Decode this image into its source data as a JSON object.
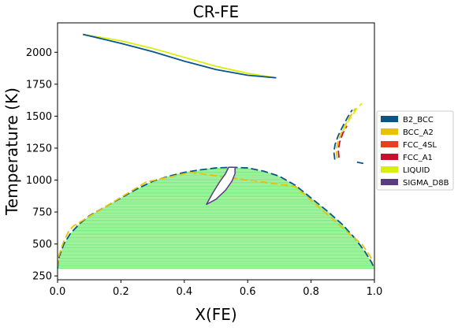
{
  "chart_data": {
    "type": "line",
    "title": "CR-FE",
    "xlabel": "X(FE)",
    "ylabel": "Temperature (K)",
    "xlim": [
      0.0,
      1.0
    ],
    "ylim": [
      220,
      2230
    ],
    "xticks": [
      "0.0",
      "0.2",
      "0.4",
      "0.6",
      "0.8",
      "1.0"
    ],
    "yticks": [
      "250",
      "500",
      "750",
      "1000",
      "1250",
      "1500",
      "1750",
      "2000"
    ],
    "grid": false,
    "legend_position": "right",
    "legend": [
      {
        "name": "B2_BCC",
        "color": "#08558a"
      },
      {
        "name": "BCC_A2",
        "color": "#ecc000"
      },
      {
        "name": "FCC_4SL",
        "color": "#e8401c"
      },
      {
        "name": "FCC_A1",
        "color": "#c8102e"
      },
      {
        "name": "LIQUID",
        "color": "#d8ee10"
      },
      {
        "name": "SIGMA_D8B",
        "color": "#5a3c82"
      }
    ],
    "tie_line_color": "#80ee80",
    "tie_lines": {
      "t_min": 310,
      "t_max": 1095,
      "step": 8
    },
    "series": [
      {
        "name": "LIQUID",
        "style": "solid",
        "points": [
          [
            0.08,
            2140
          ],
          [
            0.2,
            2090
          ],
          [
            0.3,
            2030
          ],
          [
            0.4,
            1960
          ],
          [
            0.5,
            1890
          ],
          [
            0.6,
            1835
          ],
          [
            0.69,
            1800
          ]
        ]
      },
      {
        "name": "B2_BCC",
        "style": "solid",
        "points": [
          [
            0.08,
            2140
          ],
          [
            0.2,
            2070
          ],
          [
            0.3,
            2005
          ],
          [
            0.4,
            1930
          ],
          [
            0.5,
            1865
          ],
          [
            0.6,
            1820
          ],
          [
            0.69,
            1800
          ]
        ]
      },
      {
        "name": "B2_BCC",
        "style": "dashed",
        "points": [
          [
            0.0,
            310
          ],
          [
            0.005,
            400
          ],
          [
            0.02,
            500
          ],
          [
            0.04,
            580
          ],
          [
            0.07,
            660
          ],
          [
            0.1,
            720
          ],
          [
            0.15,
            790
          ],
          [
            0.2,
            860
          ],
          [
            0.25,
            930
          ],
          [
            0.3,
            990
          ],
          [
            0.35,
            1030
          ],
          [
            0.4,
            1060
          ],
          [
            0.45,
            1080
          ],
          [
            0.5,
            1095
          ],
          [
            0.55,
            1100
          ],
          [
            0.6,
            1095
          ],
          [
            0.65,
            1070
          ],
          [
            0.7,
            1030
          ],
          [
            0.75,
            960
          ],
          [
            0.8,
            860
          ],
          [
            0.85,
            760
          ],
          [
            0.9,
            650
          ],
          [
            0.94,
            540
          ],
          [
            0.97,
            440
          ],
          [
            0.99,
            360
          ],
          [
            1.0,
            310
          ]
        ]
      },
      {
        "name": "BCC_A2",
        "style": "dashed",
        "points": [
          [
            0.0,
            320
          ],
          [
            0.004,
            410
          ],
          [
            0.018,
            510
          ],
          [
            0.035,
            600
          ],
          [
            0.05,
            640
          ],
          [
            0.28,
            985
          ],
          [
            0.42,
            1060
          ],
          [
            0.75,
            950
          ],
          [
            0.93,
            560
          ],
          [
            0.96,
            500
          ],
          [
            0.985,
            410
          ],
          [
            0.995,
            360
          ]
        ]
      },
      {
        "name": "SIGMA_D8B",
        "style": "solid",
        "points": [
          [
            0.54,
            1100
          ],
          [
            0.53,
            1050
          ],
          [
            0.51,
            980
          ],
          [
            0.49,
            900
          ],
          [
            0.47,
            810
          ],
          [
            0.5,
            850
          ],
          [
            0.53,
            920
          ],
          [
            0.55,
            990
          ],
          [
            0.56,
            1050
          ],
          [
            0.56,
            1100
          ]
        ]
      },
      {
        "name": "B2_BCC",
        "style": "dashed",
        "points": [
          [
            0.875,
            1160
          ],
          [
            0.872,
            1220
          ],
          [
            0.876,
            1280
          ],
          [
            0.886,
            1350
          ],
          [
            0.9,
            1420
          ],
          [
            0.915,
            1490
          ],
          [
            0.93,
            1550
          ]
        ]
      },
      {
        "name": "BCC_A2",
        "style": "dashed",
        "points": [
          [
            0.882,
            1170
          ],
          [
            0.88,
            1230
          ],
          [
            0.884,
            1290
          ],
          [
            0.894,
            1360
          ],
          [
            0.908,
            1430
          ],
          [
            0.924,
            1500
          ],
          [
            0.94,
            1560
          ]
        ]
      },
      {
        "name": "FCC_A1",
        "style": "dashed",
        "points": [
          [
            0.888,
            1175
          ],
          [
            0.886,
            1235
          ],
          [
            0.89,
            1295
          ],
          [
            0.9,
            1365
          ],
          [
            0.913,
            1425
          ]
        ]
      },
      {
        "name": "LIQUID",
        "style": "dashed",
        "points": [
          [
            0.9,
            1380
          ],
          [
            0.912,
            1440
          ],
          [
            0.928,
            1500
          ],
          [
            0.945,
            1560
          ],
          [
            0.96,
            1600
          ]
        ]
      },
      {
        "name": "B2_BCC",
        "style": "solid",
        "points": [
          [
            0.945,
            1140
          ],
          [
            0.965,
            1130
          ]
        ]
      }
    ]
  }
}
